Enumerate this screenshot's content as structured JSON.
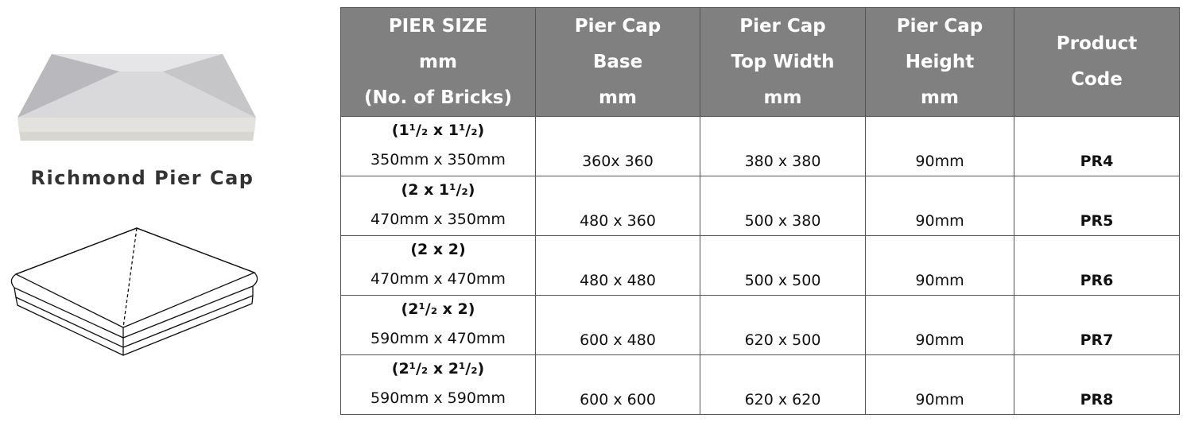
{
  "product": {
    "title": "Richmond Pier Cap"
  },
  "table": {
    "headers": [
      [
        "PIER SIZE",
        "mm",
        "(No. of Bricks)"
      ],
      [
        "Pier Cap",
        "Base",
        "mm"
      ],
      [
        "Pier Cap",
        "Top Width",
        "mm"
      ],
      [
        "Pier Cap",
        "Height",
        "mm"
      ],
      [
        "Product",
        "Code"
      ]
    ],
    "rows": [
      [
        "(1¹/₂ x 1¹/₂)",
        "350mm x 350mm",
        "360x 360",
        "380 x 380",
        "90mm",
        "PR4"
      ],
      [
        "(2 x 1¹/₂)",
        "470mm x 350mm",
        "480 x 360",
        "500 x 380",
        "90mm",
        "PR5"
      ],
      [
        "(2 x 2)",
        "470mm x 470mm",
        "480 x 480",
        "500 x 500",
        "90mm",
        "PR6"
      ],
      [
        "(2¹/₂ x 2)",
        "590mm x 470mm",
        "600 x 480",
        "620 x 500",
        "90mm",
        "PR7"
      ],
      [
        "(2¹/₂ x 2¹/₂)",
        "590mm x 590mm",
        "600 x 600",
        "620 x 620",
        "90mm",
        "PR8"
      ]
    ]
  }
}
